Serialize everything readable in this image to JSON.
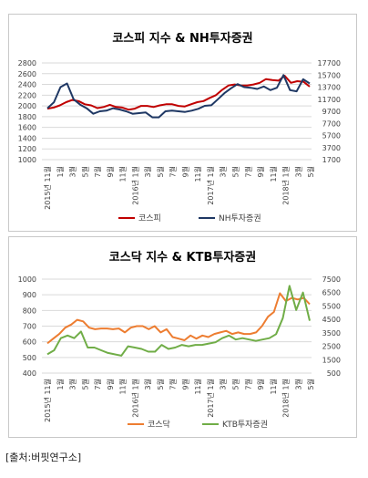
{
  "chart_data": [
    {
      "type": "line",
      "title": "코스피 지수 & NH투자증권",
      "x_labels": [
        "2015년 11월",
        "1월",
        "3월",
        "5월",
        "7월",
        "9월",
        "11월",
        "2016년 1월",
        "3월",
        "5월",
        "7월",
        "9월",
        "11월",
        "2017년 1월",
        "3월",
        "5월",
        "7월",
        "9월",
        "11월",
        "2018년 1월",
        "3월",
        "5월"
      ],
      "x_label_stride": 2,
      "y_left": {
        "min": 1000,
        "max": 2800,
        "ticks": [
          1000,
          1200,
          1400,
          1600,
          1800,
          2000,
          2200,
          2400,
          2600,
          2800
        ]
      },
      "y_right": {
        "min": 1700,
        "max": 17700,
        "ticks": [
          1700,
          3700,
          5700,
          7700,
          9700,
          11700,
          13700,
          15700,
          17700
        ]
      },
      "legend_position": "bottom",
      "grid": true,
      "series": [
        {
          "name": "코스피",
          "axis": "left",
          "color": "#c00000",
          "values": [
            1950,
            1970,
            2010,
            2070,
            2110,
            2090,
            2030,
            2010,
            1960,
            1980,
            2020,
            1980,
            1970,
            1930,
            1950,
            2000,
            2000,
            1980,
            2010,
            2030,
            2030,
            2000,
            1990,
            2030,
            2070,
            2090,
            2150,
            2200,
            2300,
            2380,
            2400,
            2380,
            2380,
            2400,
            2430,
            2500,
            2480,
            2470,
            2560,
            2430,
            2460,
            2450,
            2360
          ]
        },
        {
          "name": "NH투자증권",
          "axis": "right",
          "color": "#1f3864",
          "values": [
            10200,
            11200,
            13700,
            14300,
            11700,
            10800,
            10200,
            9300,
            9700,
            9800,
            10200,
            10000,
            9700,
            9300,
            9400,
            9500,
            8700,
            8700,
            9700,
            9800,
            9700,
            9600,
            9800,
            10100,
            10600,
            10700,
            11700,
            12700,
            13500,
            14200,
            13700,
            13600,
            13400,
            13800,
            13200,
            13600,
            15700,
            13200,
            13000,
            15000,
            14300
          ]
        }
      ]
    },
    {
      "type": "line",
      "title": "코스닥 지수 & KTB투자증권",
      "x_labels": [
        "2015년 11월",
        "1월",
        "3월",
        "5월",
        "7월",
        "9월",
        "11월",
        "2016년 1월",
        "3월",
        "5월",
        "7월",
        "9월",
        "11월",
        "2017년 1월",
        "3월",
        "5월",
        "7월",
        "9월",
        "11월",
        "2018년 1월",
        "3월",
        "5월"
      ],
      "x_label_stride": 2,
      "y_left": {
        "min": 400,
        "max": 1000,
        "ticks": [
          400,
          500,
          600,
          700,
          800,
          900,
          1000
        ]
      },
      "y_right": {
        "min": 500,
        "max": 7500,
        "ticks": [
          500,
          1500,
          2500,
          3500,
          4500,
          5500,
          6500,
          7500
        ]
      },
      "legend_position": "bottom",
      "grid": true,
      "series": [
        {
          "name": "코스닥",
          "axis": "left",
          "color": "#ed7d31",
          "values": [
            590,
            620,
            650,
            690,
            710,
            740,
            730,
            690,
            680,
            685,
            685,
            680,
            685,
            660,
            690,
            700,
            700,
            680,
            700,
            660,
            680,
            630,
            620,
            610,
            640,
            620,
            640,
            630,
            650,
            660,
            670,
            650,
            660,
            650,
            650,
            660,
            700,
            760,
            790,
            910,
            860,
            880,
            870,
            880,
            840
          ]
        },
        {
          "name": "KTB투자증권",
          "axis": "right",
          "color": "#70ad47",
          "values": [
            1900,
            2200,
            3100,
            3300,
            3100,
            3600,
            2400,
            2400,
            2200,
            2000,
            1900,
            1800,
            2500,
            2400,
            2300,
            2100,
            2100,
            2600,
            2300,
            2400,
            2600,
            2500,
            2600,
            2600,
            2700,
            2800,
            3100,
            3300,
            3000,
            3100,
            3000,
            2900,
            3000,
            3100,
            3400,
            4600,
            7000,
            5200,
            6500,
            4400
          ]
        }
      ]
    }
  ],
  "source": "[출처:버핏연구소]"
}
